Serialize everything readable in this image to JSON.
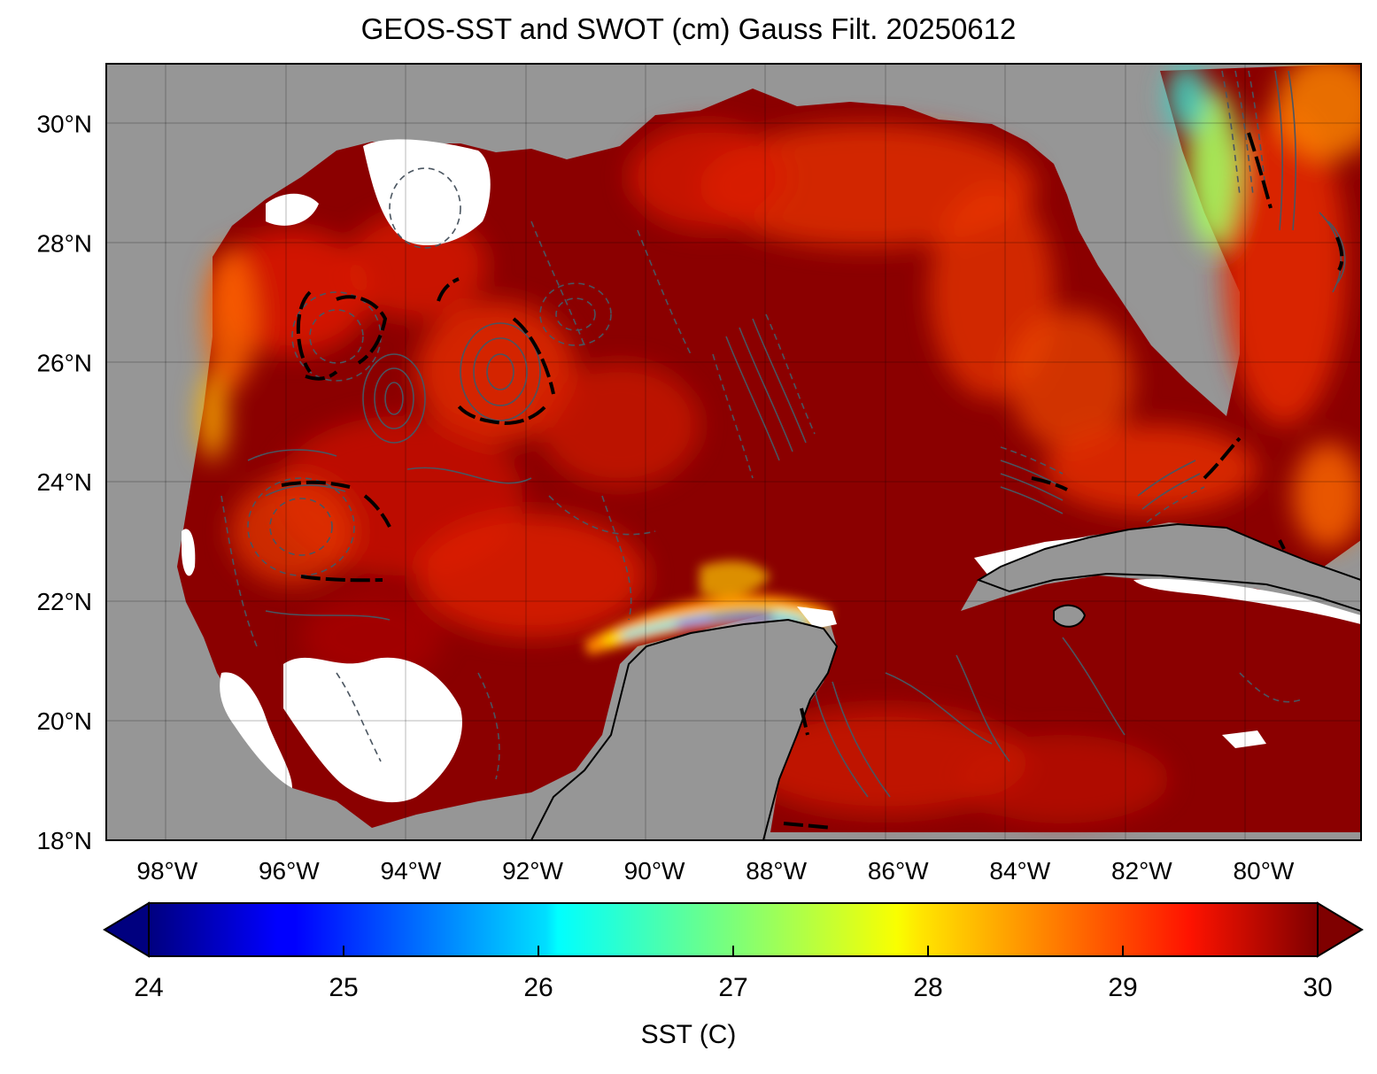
{
  "figure": {
    "title": "GEOS-SST  and SWOT (cm) Gauss Filt. 20250612"
  },
  "map": {
    "type": "sea-surface-temperature map with SWOT contours",
    "region": "Gulf of Mexico",
    "land_color": "#969696",
    "nodata_color": "#ffffff",
    "grid": true,
    "lon_range": [
      -99,
      -78.4
    ],
    "lat_range": [
      18,
      31
    ],
    "lat_ticks": [
      {
        "value": 30,
        "label": "30°N"
      },
      {
        "value": 28,
        "label": "28°N"
      },
      {
        "value": 26,
        "label": "26°N"
      },
      {
        "value": 24,
        "label": "24°N"
      },
      {
        "value": 22,
        "label": "22°N"
      },
      {
        "value": 20,
        "label": "20°N"
      },
      {
        "value": 18,
        "label": "18°N"
      }
    ],
    "lon_ticks": [
      {
        "value": -98,
        "label": "98°W"
      },
      {
        "value": -96,
        "label": "96°W"
      },
      {
        "value": -94,
        "label": "94°W"
      },
      {
        "value": -92,
        "label": "92°W"
      },
      {
        "value": -90,
        "label": "90°W"
      },
      {
        "value": -88,
        "label": "88°W"
      },
      {
        "value": -86,
        "label": "86°W"
      },
      {
        "value": -84,
        "label": "84°W"
      },
      {
        "value": -82,
        "label": "82°W"
      },
      {
        "value": -80,
        "label": "80°W"
      }
    ],
    "contours": {
      "color": "#4a5560",
      "positive_style": "solid",
      "negative_style": "dashed",
      "zero_line_color": "#000000"
    }
  },
  "colorbar": {
    "label": "SST (C)",
    "colormap": "jet",
    "min": 24,
    "max": 30,
    "extend": "both",
    "ticks": [
      {
        "value": 24,
        "label": "24"
      },
      {
        "value": 25,
        "label": "25"
      },
      {
        "value": 26,
        "label": "26"
      },
      {
        "value": 27,
        "label": "27"
      },
      {
        "value": 28,
        "label": "28"
      },
      {
        "value": 29,
        "label": "29"
      },
      {
        "value": 30,
        "label": "30"
      }
    ]
  }
}
